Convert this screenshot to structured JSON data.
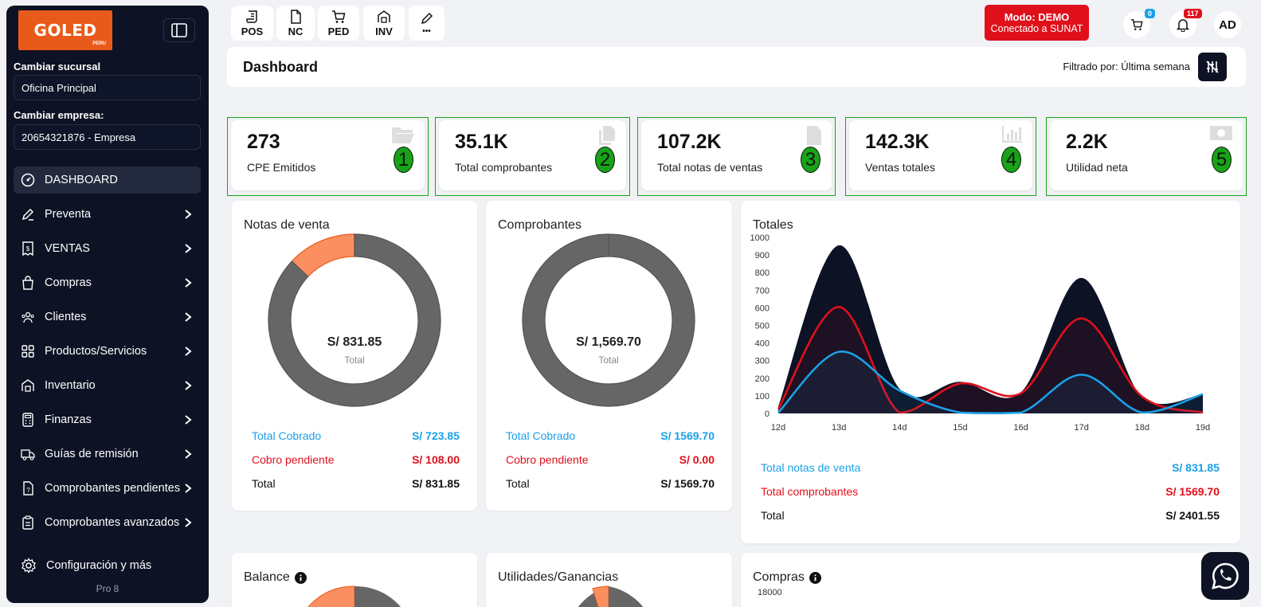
{
  "sidebar": {
    "logo_text": "GOLED",
    "logo_subtext": "PERU",
    "branch_label": "Cambiar sucursal",
    "branch_value": "Oficina Principal",
    "company_label": "Cambiar empresa:",
    "company_value": "20654321876 - Empresa",
    "items": [
      {
        "label": "DASHBOARD",
        "icon": "gauge-icon",
        "active": true
      },
      {
        "label": "Preventa",
        "icon": "pencil-icon"
      },
      {
        "label": "VENTAS",
        "icon": "receipt-icon"
      },
      {
        "label": "Compras",
        "icon": "shopping-bag-icon"
      },
      {
        "label": "Clientes",
        "icon": "users-icon"
      },
      {
        "label": "Productos/Servicios",
        "icon": "grid-icon"
      },
      {
        "label": "Inventario",
        "icon": "warehouse-icon"
      },
      {
        "label": "Finanzas",
        "icon": "calculator-icon"
      },
      {
        "label": "Guías de remisión",
        "icon": "truck-icon"
      },
      {
        "label": "Comprobantes pendientes",
        "icon": "file-question-icon"
      },
      {
        "label": "Comprobantes avanzados",
        "icon": "clipboard-icon"
      }
    ],
    "config_label": "Configuración y más",
    "version": "Pro 8"
  },
  "topbar": {
    "quick_buttons": [
      {
        "label": "POS",
        "icon": "scroll-icon"
      },
      {
        "label": "NC",
        "icon": "file-icon"
      },
      {
        "label": "PED",
        "icon": "cart-icon"
      },
      {
        "label": "INV",
        "icon": "warehouse-icon"
      },
      {
        "label": "•••",
        "icon": "edit-icon"
      }
    ],
    "mode_line1": "Modo: DEMO",
    "mode_line2": "Conectado a SUNAT",
    "cart_badge": "0",
    "notif_badge": "117",
    "avatar_initials": "AD"
  },
  "header": {
    "title": "Dashboard",
    "filter_text": "Filtrado por: Última semana"
  },
  "kpis": [
    {
      "value": "273",
      "label": "CPE Emitidos",
      "marker": "1",
      "icon": "folder-open-icon"
    },
    {
      "value": "35.1K",
      "label": "Total comprobantes",
      "marker": "2",
      "icon": "copy-icon"
    },
    {
      "value": "107.2K",
      "label": "Total notas de ventas",
      "marker": "3",
      "icon": "file-text-icon"
    },
    {
      "value": "142.3K",
      "label": "Ventas totales",
      "marker": "4",
      "icon": "bar-chart-icon"
    },
    {
      "value": "2.2K",
      "label": "Utilidad neta",
      "marker": "5",
      "icon": "money-icon"
    }
  ],
  "notas_venta": {
    "title": "Notas de venta",
    "center_value": "S/ 831.85",
    "center_label": "Total",
    "cobrado_label": "Total Cobrado",
    "cobrado_value": "S/ 723.85",
    "pendiente_label": "Cobro pendiente",
    "pendiente_value": "S/ 108.00",
    "total_label": "Total",
    "total_value": "S/ 831.85",
    "slices": [
      {
        "name": "Total Cobrado",
        "value": 723.85,
        "color": "#666666"
      },
      {
        "name": "Cobro pendiente",
        "value": 108.0,
        "color": "#fc8f5f"
      }
    ]
  },
  "comprobantes": {
    "title": "Comprobantes",
    "center_value": "S/ 1,569.70",
    "center_label": "Total",
    "cobrado_label": "Total Cobrado",
    "cobrado_value": "S/ 1569.70",
    "pendiente_label": "Cobro pendiente",
    "pendiente_value": "S/ 0.00",
    "total_label": "Total",
    "total_value": "S/ 1569.70",
    "slices": [
      {
        "name": "Total Cobrado",
        "value": 1569.7,
        "color": "#666666"
      },
      {
        "name": "Cobro pendiente",
        "value": 0.0,
        "color": "#fc8f5f"
      }
    ]
  },
  "totales": {
    "title": "Totales",
    "notas_label": "Total notas de venta",
    "notas_value": "S/ 831.85",
    "comp_label": "Total comprobantes",
    "comp_value": "S/ 1569.70",
    "total_label": "Total",
    "total_value": "S/ 2401.55"
  },
  "chart_data": {
    "type": "area",
    "categories": [
      "12d",
      "13d",
      "14d",
      "15d",
      "16d",
      "17d",
      "18d",
      "19d"
    ],
    "ylim": [
      0,
      1000
    ],
    "yticks": [
      "0",
      "100",
      "200",
      "300",
      "400",
      "500",
      "600",
      "700",
      "800",
      "900",
      "1000"
    ],
    "series": [
      {
        "values": [
          40,
          955,
          140,
          180,
          120,
          770,
          90,
          110
        ],
        "color": "#0d1224"
      },
      {
        "values": [
          25,
          605,
          5,
          170,
          115,
          540,
          95,
          5
        ],
        "color": "#e0101b"
      },
      {
        "values": [
          5,
          350,
          130,
          5,
          5,
          220,
          5,
          110
        ],
        "color": "#1aa1e8"
      }
    ]
  },
  "bottom": {
    "balance_title": "Balance",
    "utilidades_title": "Utilidades/Ganancias",
    "compras_title": "Compras",
    "compras_tick": "18000"
  }
}
